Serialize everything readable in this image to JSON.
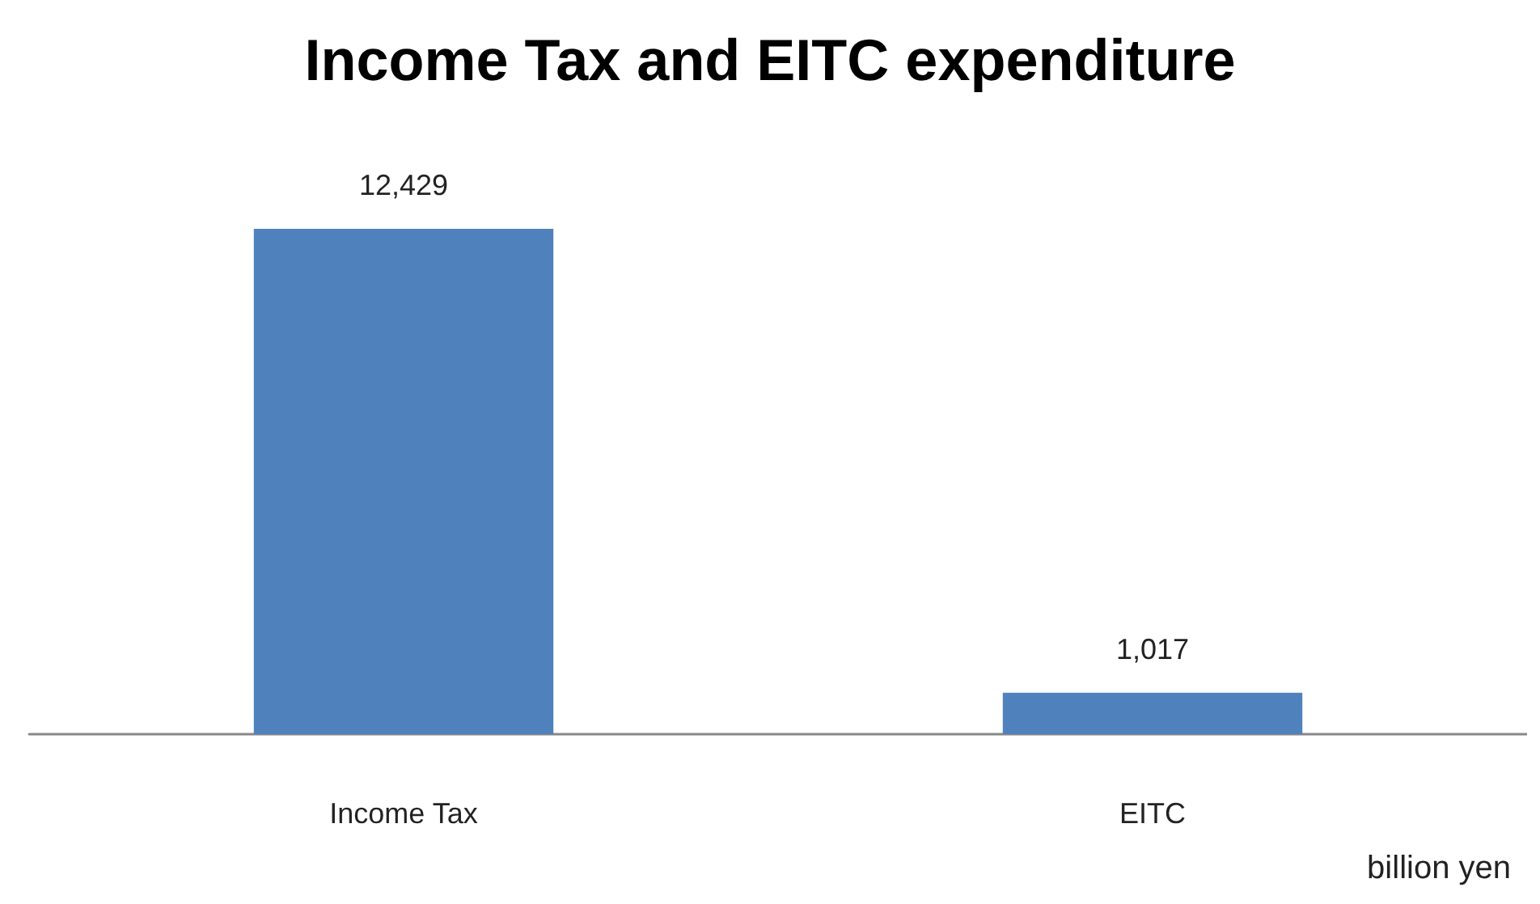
{
  "chart_data": {
    "type": "bar",
    "title": "Income Tax and EITC expenditure",
    "categories": [
      "Income Tax",
      "EITC"
    ],
    "values": [
      12429,
      1017
    ],
    "color": "#4f81bd",
    "value_labels": [
      "12,429",
      "1,017"
    ],
    "grid": false,
    "annotations": [
      "billion yen"
    ]
  }
}
